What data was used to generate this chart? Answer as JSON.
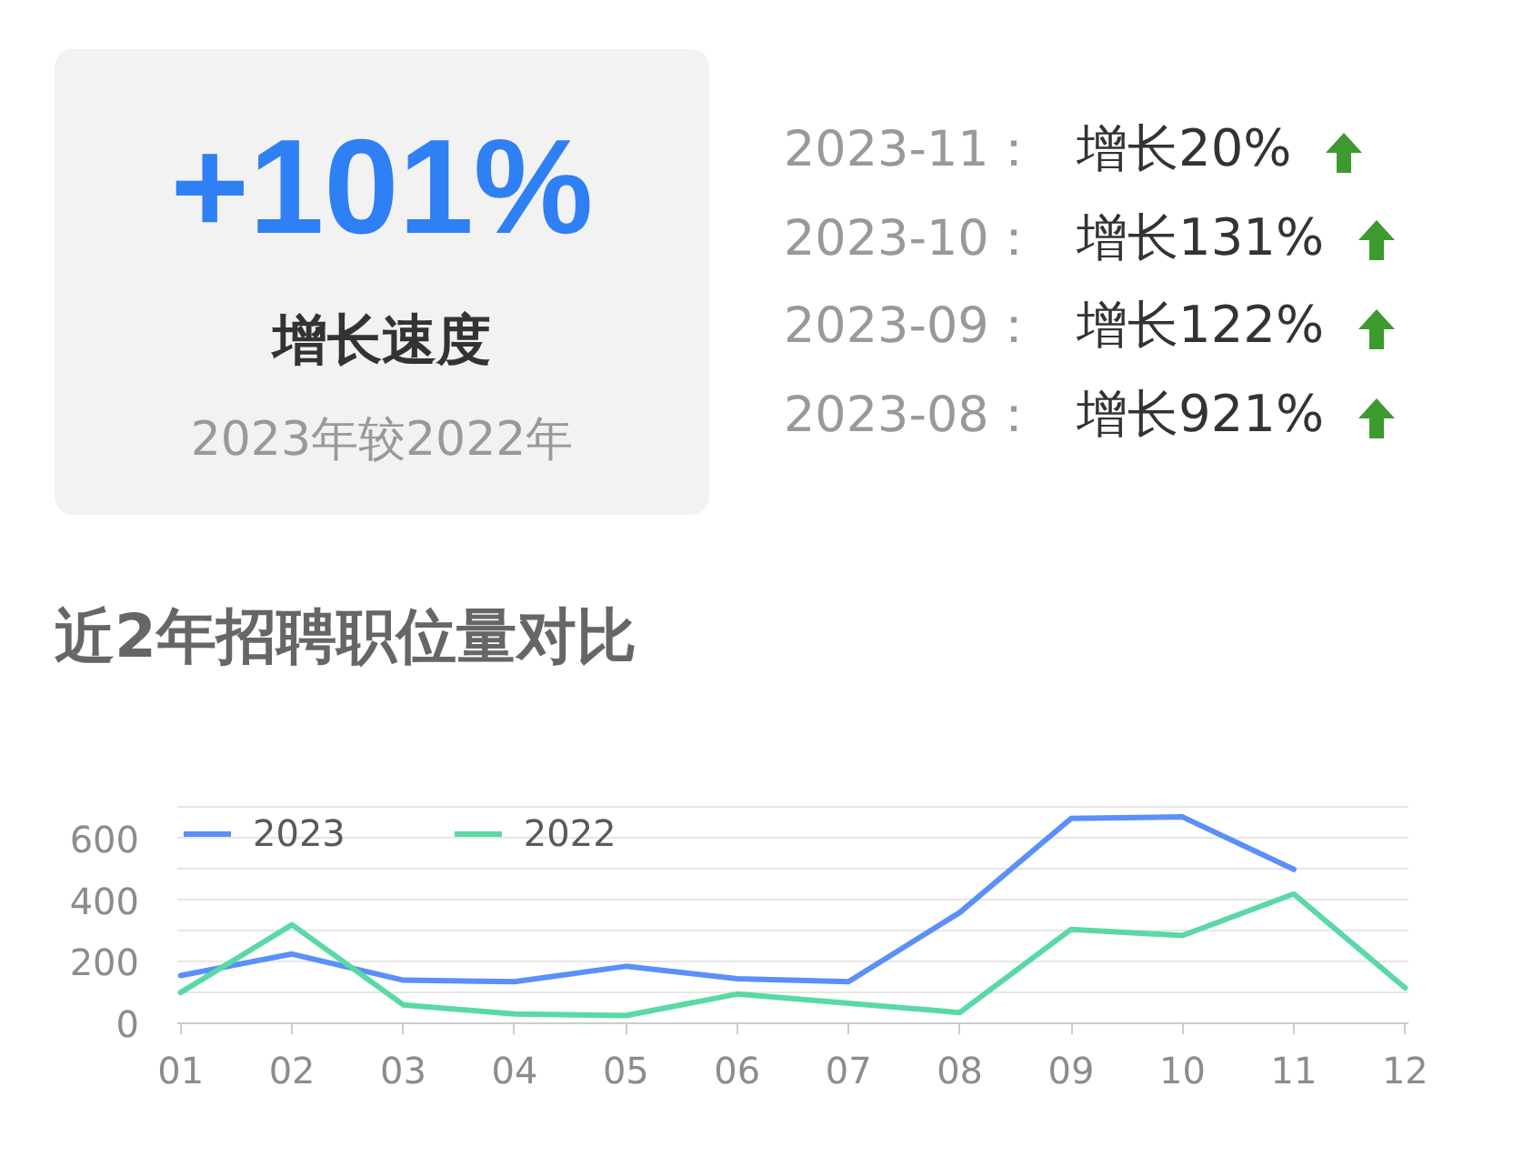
{
  "chart_data": [
    {
      "type": "other",
      "title": "+101%",
      "subtitle": "增长速度",
      "annotations": [
        "2023年较2022年"
      ]
    },
    {
      "type": "other",
      "annotations": [
        "2023-11：",
        "增长20%",
        "2023-10：",
        "增长131%",
        "2023-09：",
        "增长122%",
        "2023-08：",
        "增长921%"
      ]
    },
    {
      "type": "line",
      "title": "近2年招聘职位量对比",
      "categories": [
        "01",
        "02",
        "03",
        "04",
        "05",
        "06",
        "07",
        "08",
        "09",
        "10",
        "11",
        "12"
      ],
      "series": [
        {
          "name": "2023",
          "color": "#5b8ff9",
          "values": [
            155,
            225,
            140,
            135,
            185,
            145,
            135,
            360,
            665,
            670,
            500,
            null
          ]
        },
        {
          "name": "2022",
          "color": "#5ad8a6",
          "values": [
            100,
            320,
            60,
            30,
            25,
            95,
            65,
            35,
            305,
            285,
            420,
            115
          ]
        }
      ],
      "ylim": [
        0,
        700
      ],
      "yticks": [
        0,
        {
          "value": 100,
          "label": null
        },
        200,
        {
          "value": 300,
          "label": null
        },
        400,
        {
          "value": 500,
          "label": null
        },
        600,
        {
          "value": 700,
          "label": null
        }
      ],
      "grid": "y",
      "legend": "top left"
    }
  ]
}
